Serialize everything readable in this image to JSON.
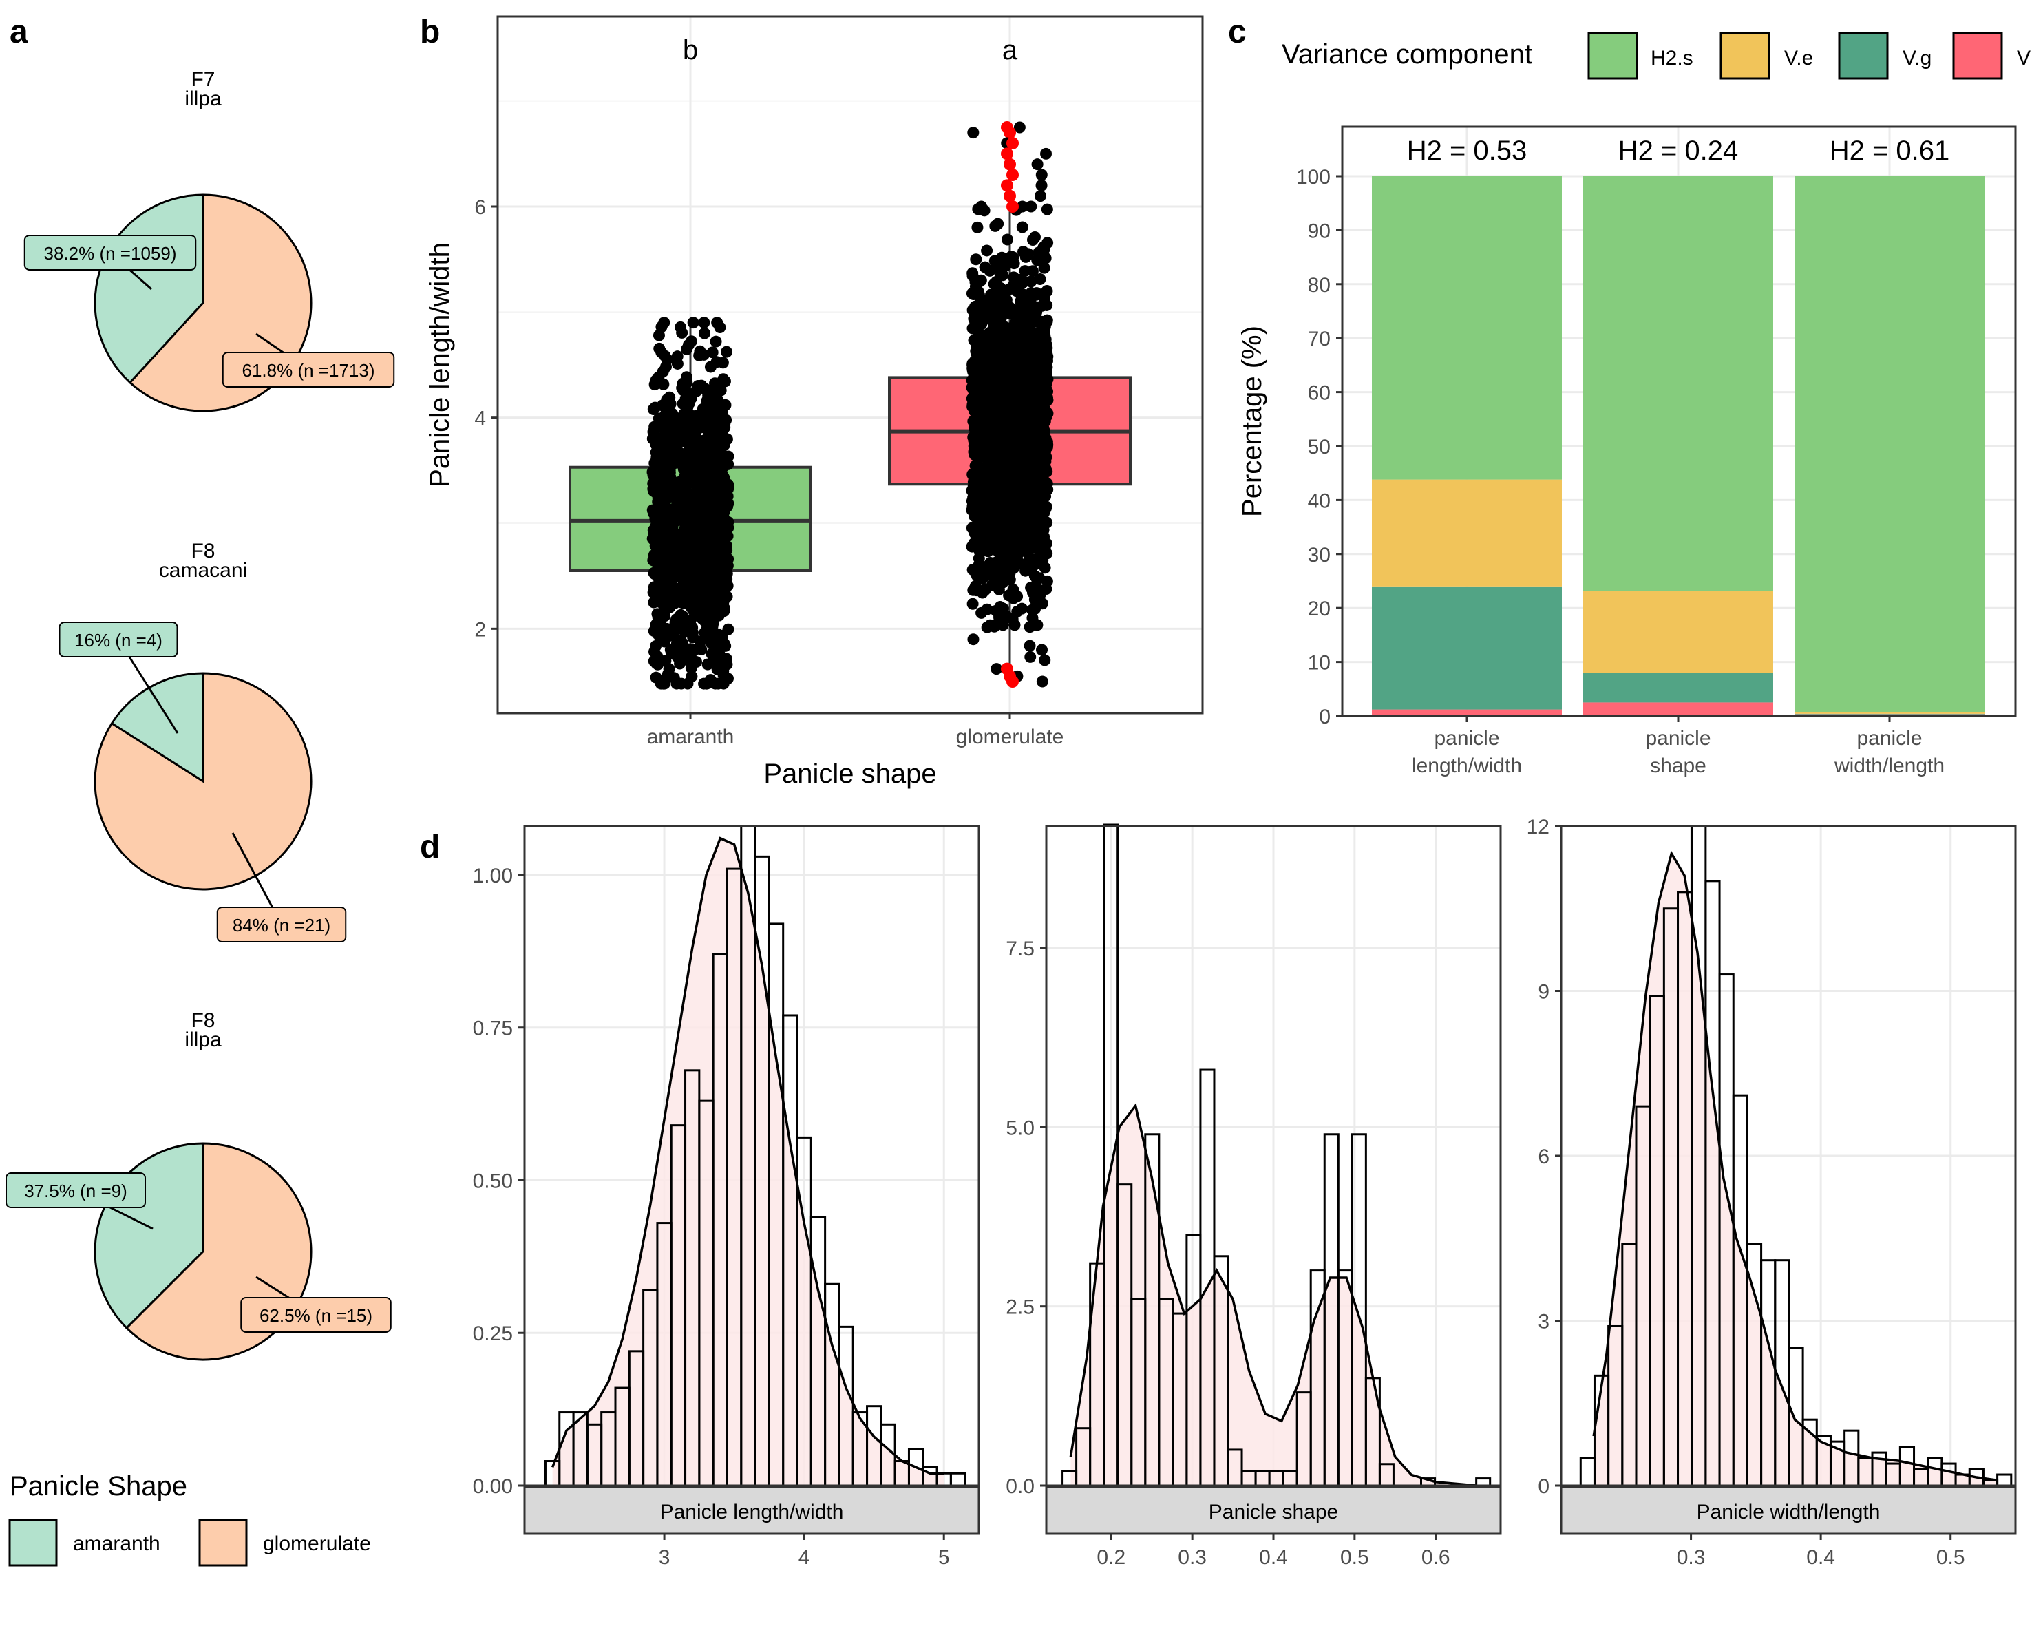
{
  "figure": {
    "panel_labels": [
      "a",
      "b",
      "c",
      "d"
    ],
    "colors": {
      "amaranth": "#b3e2cd",
      "glomerulate": "#fdcdac",
      "H2.s": "#85cc7d",
      "V.e": "#f1c45a",
      "V.g": "#52a485",
      "V.r": "#ff6675",
      "box_amaranth": "#85cc7d",
      "box_glomerulate": "#ff6675",
      "hist_fill": "#fde8e8",
      "outlier": "#ff0000",
      "strip": "#d9d9d9"
    }
  },
  "chart_data": [
    {
      "id": "a",
      "type": "pie",
      "legend_title": "Panicle Shape",
      "legend_position": "bottom-left",
      "legend_items": [
        "amaranth",
        "glomerulate"
      ],
      "pies": [
        {
          "title_line1": "F7",
          "title_line2": "illpa",
          "slices": [
            {
              "name": "amaranth",
              "percent": 38.2,
              "n": 1059,
              "label": "38.2% (n =1059)"
            },
            {
              "name": "glomerulate",
              "percent": 61.8,
              "n": 1713,
              "label": "61.8% (n =1713)"
            }
          ]
        },
        {
          "title_line1": "F8",
          "title_line2": "camacani",
          "slices": [
            {
              "name": "amaranth",
              "percent": 16,
              "n": 4,
              "label": "16% (n =4)"
            },
            {
              "name": "glomerulate",
              "percent": 84,
              "n": 21,
              "label": "84% (n =21)"
            }
          ]
        },
        {
          "title_line1": "F8",
          "title_line2": "illpa",
          "slices": [
            {
              "name": "amaranth",
              "percent": 37.5,
              "n": 9,
              "label": "37.5% (n =9)"
            },
            {
              "name": "glomerulate",
              "percent": 62.5,
              "n": 15,
              "label": "62.5% (n =15)"
            }
          ]
        }
      ]
    },
    {
      "id": "b",
      "type": "box",
      "xlabel": "Panicle shape",
      "ylabel": "Panicle length/width",
      "ylim": [
        1.2,
        7.8
      ],
      "yticks": [
        2,
        4,
        6
      ],
      "grid": true,
      "categories": [
        "amaranth",
        "glomerulate"
      ],
      "groups": [
        {
          "name": "amaranth",
          "letter": "b",
          "q1": 2.55,
          "median": 3.02,
          "q3": 3.53,
          "min": 1.48,
          "max": 4.9
        },
        {
          "name": "glomerulate",
          "letter": "a",
          "q1": 3.37,
          "median": 3.87,
          "q3": 4.38,
          "min": 1.48,
          "max": 6.75,
          "outliers": [
            6.75,
            6.7,
            6.6,
            6.5,
            6.4,
            6.3,
            6.2,
            6.1,
            6.0,
            1.62,
            1.55,
            1.5
          ]
        }
      ]
    },
    {
      "id": "c",
      "type": "bar",
      "stacked": true,
      "legend_title": "Variance component",
      "legend_position": "top",
      "ylabel": "Percentage (%)",
      "ylim": [
        0,
        100
      ],
      "yticks": [
        0,
        10,
        20,
        30,
        40,
        50,
        60,
        70,
        80,
        90,
        100
      ],
      "grid": true,
      "categories": [
        {
          "line1": "panicle",
          "line2": "length/width",
          "h2": "H2 = 0.53"
        },
        {
          "line1": "panicle",
          "line2": "shape",
          "h2": "H2 = 0.24"
        },
        {
          "line1": "panicle",
          "line2": "width/length",
          "h2": "H2 = 0.61"
        }
      ],
      "series": [
        {
          "name": "V.r",
          "legend_label": "V",
          "values": [
            1.2,
            2.5,
            0.3
          ]
        },
        {
          "name": "V.g",
          "legend_label": "V.g",
          "values": [
            22.8,
            5.5,
            0.1
          ]
        },
        {
          "name": "V.e",
          "legend_label": "V.e",
          "values": [
            19.8,
            15.2,
            0.3
          ]
        },
        {
          "name": "H2.s",
          "legend_label": "H2.s",
          "values": [
            56.2,
            76.8,
            99.3
          ]
        }
      ]
    },
    {
      "id": "d",
      "type": "histogram",
      "facets": [
        {
          "strip": "Panicle length/width",
          "xlim": [
            2.0,
            5.25
          ],
          "ylim": [
            0,
            1.08
          ],
          "xticks": [
            3,
            4,
            5
          ],
          "xtick_labels": [
            "3",
            "4",
            "5"
          ],
          "yticks": [
            0,
            0.25,
            0.5,
            0.75,
            1.0
          ],
          "ytick_labels": [
            "0.00",
            "0.25",
            "0.50",
            "0.75",
            "1.00"
          ],
          "bin_start": 2.15,
          "bin_width": 0.1,
          "densities": [
            0.04,
            0.12,
            0.12,
            0.1,
            0.12,
            0.16,
            0.22,
            0.32,
            0.43,
            0.59,
            0.68,
            0.63,
            0.87,
            1.01,
            1.08,
            1.03,
            0.92,
            0.77,
            0.57,
            0.44,
            0.33,
            0.26,
            0.12,
            0.13,
            0.1,
            0.04,
            0.06,
            0.03,
            0.02,
            0.02
          ],
          "kde_x": [
            2.2,
            2.3,
            2.4,
            2.5,
            2.6,
            2.7,
            2.8,
            2.9,
            3.0,
            3.1,
            3.2,
            3.3,
            3.4,
            3.5,
            3.6,
            3.7,
            3.8,
            3.9,
            4.0,
            4.1,
            4.2,
            4.3,
            4.4,
            4.5,
            4.6,
            4.7,
            4.8,
            4.9,
            5.0
          ],
          "kde_y": [
            0.03,
            0.09,
            0.11,
            0.13,
            0.17,
            0.24,
            0.34,
            0.46,
            0.6,
            0.74,
            0.88,
            1.0,
            1.06,
            1.05,
            0.97,
            0.85,
            0.7,
            0.56,
            0.43,
            0.32,
            0.23,
            0.16,
            0.11,
            0.08,
            0.06,
            0.04,
            0.03,
            0.02,
            0.02
          ]
        },
        {
          "strip": "Panicle shape",
          "xlim": [
            0.12,
            0.68
          ],
          "ylim": [
            0,
            9.2
          ],
          "xticks": [
            0.2,
            0.3,
            0.4,
            0.5,
            0.6
          ],
          "xtick_labels": [
            "0.2",
            "0.3",
            "0.4",
            "0.5",
            "0.6"
          ],
          "yticks": [
            0,
            2.5,
            5.0,
            7.5
          ],
          "ytick_labels": [
            "0.0",
            "2.5",
            "5.0",
            "7.5"
          ],
          "bin_start": 0.14,
          "bin_width": 0.017,
          "densities": [
            0.2,
            0.8,
            3.1,
            9.5,
            4.2,
            2.6,
            4.9,
            2.6,
            2.4,
            3.5,
            5.8,
            3.2,
            0.5,
            0.2,
            0.2,
            0.2,
            0.2,
            1.3,
            3.0,
            4.9,
            3.0,
            4.9,
            1.5,
            0.3,
            0.0,
            0.0,
            0.1,
            0.0,
            0.0,
            0.0,
            0.1
          ],
          "kde_x": [
            0.15,
            0.17,
            0.19,
            0.21,
            0.23,
            0.25,
            0.27,
            0.29,
            0.31,
            0.33,
            0.35,
            0.37,
            0.39,
            0.41,
            0.43,
            0.45,
            0.47,
            0.49,
            0.51,
            0.53,
            0.55,
            0.57,
            0.6,
            0.63,
            0.65
          ],
          "kde_y": [
            0.4,
            1.8,
            3.9,
            5.0,
            5.3,
            4.3,
            3.1,
            2.4,
            2.6,
            3.0,
            2.6,
            1.6,
            1.0,
            0.9,
            1.4,
            2.3,
            2.9,
            2.9,
            2.2,
            1.1,
            0.4,
            0.15,
            0.05,
            0.02,
            0.0
          ]
        },
        {
          "strip": "Panicle width/length",
          "xlim": [
            0.2,
            0.55
          ],
          "ylim": [
            0,
            12
          ],
          "xticks": [
            0.3,
            0.4,
            0.5
          ],
          "xtick_labels": [
            "0.3",
            "0.4",
            "0.5"
          ],
          "yticks": [
            0,
            3,
            6,
            9,
            12
          ],
          "ytick_labels": [
            "0",
            "3",
            "6",
            "9",
            "12"
          ],
          "bin_start": 0.215,
          "bin_width": 0.0107,
          "densities": [
            0.5,
            2.0,
            2.9,
            4.4,
            6.9,
            8.9,
            10.5,
            10.8,
            12.0,
            11.0,
            9.3,
            7.1,
            4.4,
            4.1,
            4.1,
            2.5,
            1.2,
            0.9,
            0.8,
            1.0,
            0.5,
            0.6,
            0.4,
            0.7,
            0.3,
            0.5,
            0.4,
            0.2,
            0.3,
            0.1,
            0.2
          ],
          "kde_x": [
            0.225,
            0.235,
            0.245,
            0.255,
            0.265,
            0.275,
            0.285,
            0.295,
            0.305,
            0.315,
            0.325,
            0.335,
            0.345,
            0.355,
            0.365,
            0.38,
            0.4,
            0.42,
            0.44,
            0.46,
            0.48,
            0.5,
            0.52,
            0.535
          ],
          "kde_y": [
            0.9,
            2.4,
            4.5,
            6.7,
            8.9,
            10.6,
            11.5,
            11.1,
            9.7,
            7.5,
            5.6,
            4.5,
            3.8,
            3.0,
            2.1,
            1.2,
            0.8,
            0.6,
            0.5,
            0.45,
            0.35,
            0.25,
            0.15,
            0.1
          ]
        }
      ]
    }
  ]
}
